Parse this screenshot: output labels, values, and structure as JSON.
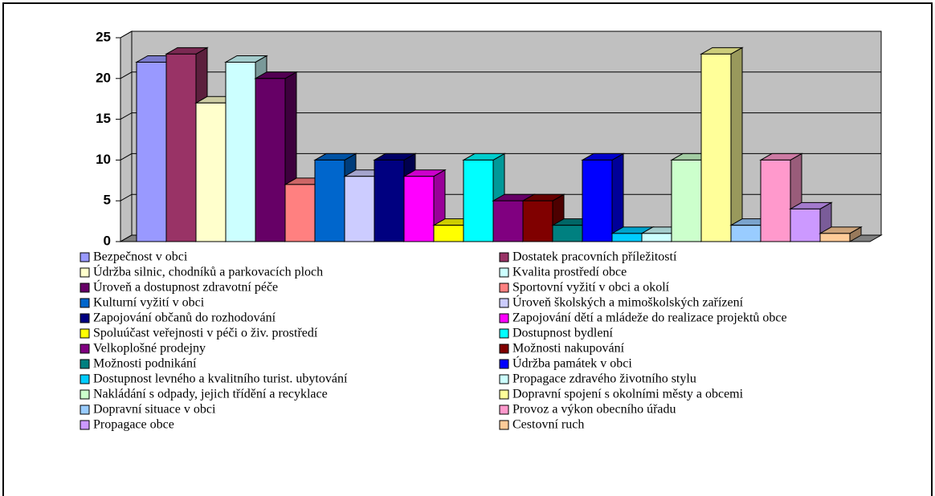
{
  "chart_data": {
    "type": "bar3d",
    "categories": [
      "Bezpečnost v obci",
      "Dostatek pracovních příležitostí",
      "Údržba silnic, chodníků a parkovacích ploch",
      "Kvalita prostředí obce",
      "Úroveň a dostupnost zdravotní péče",
      "Sportovní vyžití v obci a okolí",
      "Kulturní vyžití v obci",
      "Úroveň školských a mimoškolských zařízení",
      "Zapojování občanů do rozhodování",
      "Zapojování dětí a mládeže do realizace projektů obce",
      "Spoluúčast veřejnosti v péči o živ. prostředí",
      "Dostupnost bydlení",
      "Velkoplošné prodejny",
      "Možnosti nakupování",
      "Možnosti podnikání",
      "Údržba památek v obci",
      "Dostupnost levného a kvalitního turist. ubytování",
      "Propagace zdravého životního stylu",
      "Nakládání s odpady, jejich třídění a recyklace",
      "Dopravní spojení s okolními městy a obcemi",
      "Dopravní situace v obci",
      "Provoz a výkon obecního úřadu",
      "Propagace obce",
      "Cestovní ruch"
    ],
    "values": [
      22,
      23,
      17,
      22,
      20,
      7,
      10,
      8,
      10,
      8,
      2,
      10,
      5,
      5,
      2,
      10,
      1,
      1,
      10,
      23,
      2,
      10,
      4,
      1
    ],
    "colors": [
      "#9999ff",
      "#993366",
      "#ffffcc",
      "#ccffff",
      "#660066",
      "#ff8080",
      "#0066cc",
      "#ccccff",
      "#000080",
      "#ff00ff",
      "#ffff00",
      "#00ffff",
      "#800080",
      "#800000",
      "#008080",
      "#0000ff",
      "#00ccff",
      "#ccffff",
      "#ccffcc",
      "#ffff99",
      "#99ccff",
      "#ff99cc",
      "#cc99ff",
      "#ffcc99"
    ],
    "ylim": [
      0,
      25
    ],
    "yticks": [
      0,
      5,
      10,
      15,
      20,
      25
    ],
    "grid": true
  }
}
